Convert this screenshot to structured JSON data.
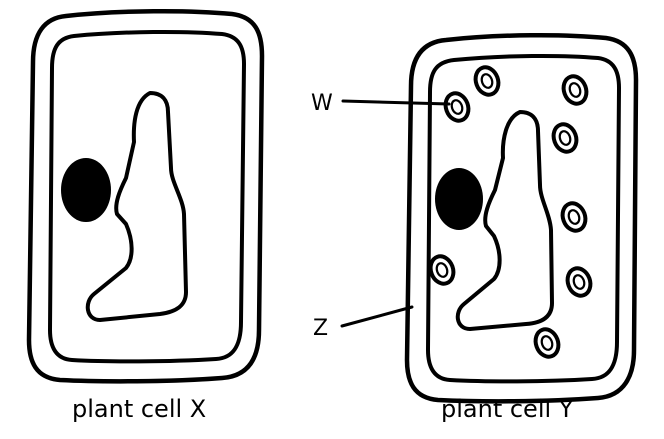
{
  "cells": [
    {
      "caption": "plant cell X",
      "has_chloroplasts": false
    },
    {
      "caption": "plant cell Y",
      "has_chloroplasts": true
    }
  ],
  "pointers": {
    "w": "W",
    "z": "Z"
  }
}
